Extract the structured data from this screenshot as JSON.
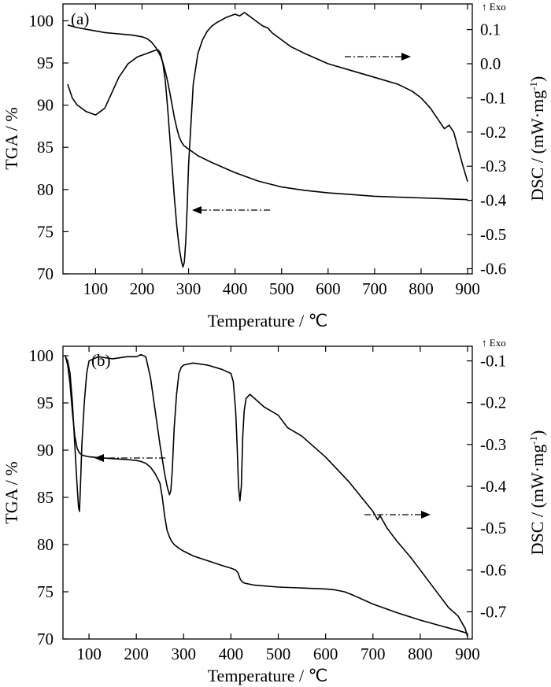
{
  "chart_data": [
    {
      "type": "line",
      "panel_label": "(a)",
      "exo_label": "↑ Exo",
      "xlabel": "Temperature / ℃",
      "ylabel_left": "TGA / %",
      "ylabel_right": "DSC / (mW·mg",
      "ylabel_right_sup": "-1",
      "ylabel_right_close": ")",
      "xlim": [
        30,
        910
      ],
      "ylim_left": [
        70,
        102
      ],
      "ylim_right": [
        -0.615,
        0.175
      ],
      "x_ticks": [
        100,
        200,
        300,
        400,
        500,
        600,
        700,
        800,
        900
      ],
      "y_left_ticks": [
        70,
        75,
        80,
        85,
        90,
        95,
        100
      ],
      "y_right_ticks": [
        -0.6,
        -0.5,
        -0.4,
        -0.3,
        -0.2,
        -0.1,
        0.0,
        0.1
      ],
      "y_right_tick_labels": [
        "-0.6",
        "-0.5",
        "-0.4",
        "-0.3",
        "-0.2",
        "-0.1",
        "0.0",
        "0.1"
      ],
      "series": [
        {
          "axis": "left",
          "x": [
            40,
            60,
            80,
            100,
            120,
            140,
            160,
            180,
            200,
            210,
            220,
            230,
            240,
            245,
            250,
            255,
            260,
            265,
            270,
            275,
            280,
            285,
            290,
            295,
            300,
            310,
            320,
            350,
            400,
            450,
            500,
            550,
            600,
            650,
            700,
            750,
            800,
            850,
            900
          ],
          "y": [
            99.5,
            99.2,
            99.0,
            98.8,
            98.6,
            98.5,
            98.4,
            98.3,
            98.1,
            97.9,
            97.5,
            96.8,
            95.8,
            95.0,
            94.0,
            92.8,
            91.4,
            89.9,
            88.4,
            87.2,
            86.2,
            85.6,
            85.2,
            85.0,
            84.8,
            84.4,
            84.0,
            83.2,
            82.0,
            81.0,
            80.3,
            79.9,
            79.6,
            79.4,
            79.2,
            79.1,
            79.0,
            78.9,
            78.8
          ]
        },
        {
          "axis": "right",
          "x": [
            40,
            50,
            60,
            70,
            80,
            90,
            100,
            110,
            120,
            130,
            140,
            150,
            160,
            170,
            180,
            190,
            200,
            210,
            220,
            230,
            235,
            240,
            245,
            250,
            255,
            260,
            265,
            270,
            275,
            280,
            285,
            288,
            291,
            294,
            297,
            300,
            305,
            310,
            320,
            330,
            340,
            350,
            360,
            380,
            400,
            410,
            420,
            430,
            440,
            450,
            460,
            470,
            480,
            500,
            520,
            550,
            600,
            650,
            700,
            750,
            780,
            800,
            820,
            840,
            850,
            860,
            870,
            880,
            890,
            900
          ],
          "y": [
            -0.06,
            -0.1,
            -0.12,
            -0.13,
            -0.14,
            -0.145,
            -0.15,
            -0.14,
            -0.13,
            -0.1,
            -0.07,
            -0.04,
            -0.02,
            0.0,
            0.01,
            0.02,
            0.025,
            0.03,
            0.035,
            0.04,
            0.04,
            0.03,
            0.0,
            -0.05,
            -0.13,
            -0.22,
            -0.31,
            -0.4,
            -0.48,
            -0.54,
            -0.58,
            -0.595,
            -0.58,
            -0.52,
            -0.42,
            -0.3,
            -0.18,
            -0.06,
            0.03,
            0.07,
            0.095,
            0.11,
            0.12,
            0.135,
            0.145,
            0.14,
            0.15,
            0.14,
            0.13,
            0.12,
            0.11,
            0.105,
            0.09,
            0.07,
            0.05,
            0.03,
            0.0,
            -0.02,
            -0.04,
            -0.06,
            -0.08,
            -0.1,
            -0.13,
            -0.17,
            -0.19,
            -0.18,
            -0.2,
            -0.25,
            -0.3,
            -0.345
          ]
        }
      ]
    },
    {
      "type": "line",
      "panel_label": "(b)",
      "exo_label": "↑ Exo",
      "xlabel": "Temperature / ℃",
      "ylabel_left": "TGA / %",
      "ylabel_right": "DSC / (mW·mg",
      "ylabel_right_sup": "-1",
      "ylabel_right_close": ")",
      "xlim": [
        45,
        910
      ],
      "ylim_left": [
        70,
        101
      ],
      "ylim_right": [
        -0.765,
        -0.065
      ],
      "x_ticks": [
        100,
        200,
        300,
        400,
        500,
        600,
        700,
        800,
        900
      ],
      "y_left_ticks": [
        70,
        75,
        80,
        85,
        90,
        95,
        100
      ],
      "y_right_ticks": [
        -0.7,
        -0.6,
        -0.5,
        -0.4,
        -0.3,
        -0.2,
        -0.1
      ],
      "y_right_tick_labels": [
        "-0.7",
        "-0.6",
        "-0.5",
        "-0.4",
        "-0.3",
        "-0.2",
        "-0.1"
      ],
      "series": [
        {
          "axis": "left",
          "x": [
            50,
            55,
            60,
            65,
            70,
            75,
            80,
            85,
            90,
            100,
            120,
            150,
            180,
            200,
            210,
            220,
            230,
            240,
            250,
            255,
            260,
            265,
            270,
            275,
            280,
            290,
            300,
            320,
            350,
            380,
            400,
            410,
            415,
            420,
            425,
            430,
            450,
            500,
            550,
            600,
            620,
            640,
            660,
            700,
            750,
            800,
            850,
            880,
            900
          ],
          "y": [
            100.0,
            99.0,
            97.0,
            94.0,
            91.5,
            90.2,
            89.7,
            89.5,
            89.4,
            89.3,
            89.2,
            89.1,
            89.0,
            88.9,
            88.8,
            88.6,
            88.2,
            87.5,
            86.5,
            85.0,
            83.0,
            81.5,
            80.8,
            80.3,
            80.0,
            79.6,
            79.3,
            78.8,
            78.3,
            77.8,
            77.5,
            77.3,
            77.0,
            76.3,
            76.0,
            75.9,
            75.7,
            75.5,
            75.4,
            75.3,
            75.2,
            75.0,
            74.6,
            73.7,
            72.8,
            72.0,
            71.3,
            70.9,
            70.6
          ]
        },
        {
          "axis": "right",
          "x": [
            50,
            55,
            60,
            65,
            70,
            75,
            78,
            80,
            82,
            85,
            90,
            95,
            100,
            110,
            120,
            150,
            180,
            200,
            210,
            220,
            230,
            240,
            250,
            260,
            265,
            270,
            273,
            276,
            280,
            285,
            290,
            295,
            300,
            320,
            350,
            380,
            400,
            405,
            410,
            413,
            416,
            419,
            422,
            425,
            428,
            432,
            440,
            450,
            470,
            500,
            520,
            550,
            580,
            600,
            650,
            700,
            710,
            715,
            720,
            730,
            750,
            780,
            800,
            820,
            840,
            860,
            880,
            895,
            900
          ],
          "y": [
            -0.09,
            -0.1,
            -0.13,
            -0.2,
            -0.3,
            -0.4,
            -0.45,
            -0.46,
            -0.4,
            -0.3,
            -0.2,
            -0.13,
            -0.1,
            -0.095,
            -0.09,
            -0.095,
            -0.09,
            -0.09,
            -0.085,
            -0.09,
            -0.14,
            -0.22,
            -0.3,
            -0.37,
            -0.4,
            -0.42,
            -0.41,
            -0.36,
            -0.26,
            -0.18,
            -0.13,
            -0.115,
            -0.11,
            -0.105,
            -0.11,
            -0.12,
            -0.13,
            -0.15,
            -0.22,
            -0.3,
            -0.4,
            -0.435,
            -0.4,
            -0.28,
            -0.22,
            -0.19,
            -0.18,
            -0.19,
            -0.21,
            -0.23,
            -0.26,
            -0.28,
            -0.31,
            -0.33,
            -0.39,
            -0.46,
            -0.48,
            -0.47,
            -0.48,
            -0.5,
            -0.53,
            -0.57,
            -0.6,
            -0.63,
            -0.66,
            -0.69,
            -0.71,
            -0.74,
            -0.76
          ]
        }
      ]
    }
  ]
}
